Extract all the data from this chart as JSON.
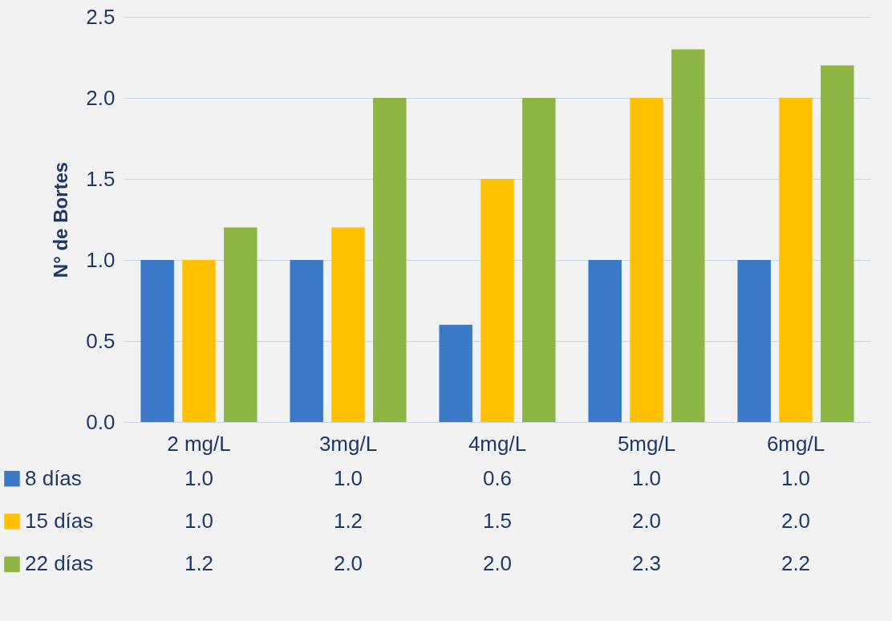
{
  "chart_data": {
    "type": "bar",
    "ylabel": "N° de Bortes",
    "categories": [
      "2 mg/L",
      "3mg/L",
      "4mg/L",
      "5mg/L",
      "6mg/L"
    ],
    "series": [
      {
        "name": "8 días",
        "color": "#3a78c8",
        "values": [
          1.0,
          1.0,
          0.6,
          1.0,
          1.0
        ],
        "value_labels": [
          "1.0",
          "1.0",
          "0.6",
          "1.0",
          "1.0"
        ]
      },
      {
        "name": "15 días",
        "color": "#ffc000",
        "values": [
          1.0,
          1.2,
          1.5,
          2.0,
          2.0
        ],
        "value_labels": [
          "1.0",
          "1.2",
          "1.5",
          "2.0",
          "2.0"
        ]
      },
      {
        "name": "22 días",
        "color": "#8db543",
        "values": [
          1.2,
          2.0,
          2.0,
          2.3,
          2.2
        ],
        "value_labels": [
          "1.2",
          "2.0",
          "2.0",
          "2.3",
          "2.2"
        ]
      }
    ],
    "ylim": [
      0,
      2.5
    ],
    "yticks": [
      {
        "value": 0,
        "label": "0.0"
      },
      {
        "value": 0.5,
        "label": "0.5"
      },
      {
        "value": 1,
        "label": "1.0"
      },
      {
        "value": 1.5,
        "label": "1.5"
      },
      {
        "value": 2,
        "label": "2.0"
      },
      {
        "value": 2.5,
        "label": "2.5"
      }
    ],
    "grid": "y",
    "legend": "bottom"
  }
}
